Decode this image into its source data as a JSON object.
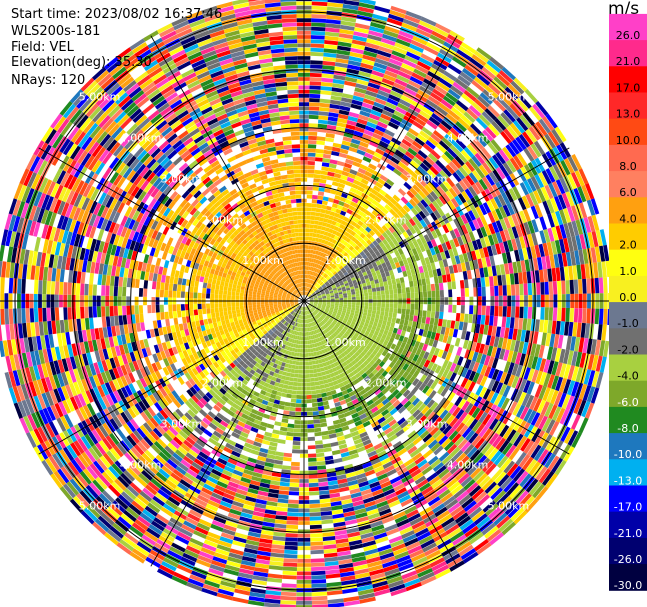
{
  "header": {
    "start_time": "Start time: 2023/08/02 16:37:46",
    "instrument": "WLS200s-181",
    "field": "Field: VEL",
    "elevation": "Elevation(deg): 35.30",
    "nrays": "NRays: 120"
  },
  "chart_data": {
    "type": "heatmap",
    "title": "",
    "projection": "polar-ppi",
    "field": "VEL",
    "units": "m/s",
    "nrays": 120,
    "elevation_deg": 35.3,
    "range_ring_labels": [
      "1.00km",
      "2.00km",
      "3.00km",
      "4.00km",
      "5.00km"
    ],
    "range_rings_km": [
      1,
      2,
      3,
      4,
      5
    ],
    "max_range_km": 5.3,
    "colorbar": {
      "unit_label": "m/s",
      "ticks": [
        "26.0",
        "21.0",
        "17.0",
        "13.0",
        "10.0",
        "8.0",
        "6.0",
        "4.0",
        "2.0",
        "1.0",
        "0.0",
        "-1.0",
        "-2.0",
        "-4.0",
        "-6.0",
        "-8.0",
        "-10.0",
        "-13.0",
        "-17.0",
        "-21.0",
        "-26.0",
        "-30.0"
      ],
      "bins": [
        {
          "lo": 26,
          "hi": 30,
          "color": "#ff40c8"
        },
        {
          "lo": 21,
          "hi": 26,
          "color": "#ff2a8c"
        },
        {
          "lo": 17,
          "hi": 21,
          "color": "#ff0000"
        },
        {
          "lo": 13,
          "hi": 17,
          "color": "#ff2828"
        },
        {
          "lo": 10,
          "hi": 13,
          "color": "#ff4a14"
        },
        {
          "lo": 8,
          "hi": 10,
          "color": "#ff6a50"
        },
        {
          "lo": 6,
          "hi": 8,
          "color": "#ff8060"
        },
        {
          "lo": 4,
          "hi": 6,
          "color": "#ffa010"
        },
        {
          "lo": 2,
          "hi": 4,
          "color": "#ffcc00"
        },
        {
          "lo": 1,
          "hi": 2,
          "color": "#ffff10"
        },
        {
          "lo": 0,
          "hi": 1,
          "color": "#f8f020"
        },
        {
          "lo": -1,
          "hi": 0,
          "color": "#6c7890"
        },
        {
          "lo": -2,
          "hi": -1,
          "color": "#707070"
        },
        {
          "lo": -4,
          "hi": -2,
          "color": "#a8d040"
        },
        {
          "lo": -6,
          "hi": -4,
          "color": "#7ea82a"
        },
        {
          "lo": -8,
          "hi": -6,
          "color": "#208a20"
        },
        {
          "lo": -10,
          "hi": -8,
          "color": "#1e78be"
        },
        {
          "lo": -13,
          "hi": -10,
          "color": "#00b0f0"
        },
        {
          "lo": -17,
          "hi": -13,
          "color": "#0000ff"
        },
        {
          "lo": -21,
          "hi": -17,
          "color": "#0000a8"
        },
        {
          "lo": -26,
          "hi": -21,
          "color": "#000070"
        },
        {
          "lo": -30,
          "hi": -26,
          "color": "#000040"
        }
      ]
    }
  }
}
